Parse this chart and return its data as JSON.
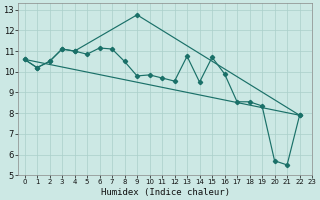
{
  "xlabel": "Humidex (Indice chaleur)",
  "bg_color": "#cce8e4",
  "grid_color": "#aacfca",
  "line_color": "#1a7068",
  "xlim": [
    -0.5,
    23
  ],
  "ylim": [
    5,
    13.3
  ],
  "yticks": [
    5,
    6,
    7,
    8,
    9,
    10,
    11,
    12,
    13
  ],
  "xticks": [
    0,
    1,
    2,
    3,
    4,
    5,
    6,
    7,
    8,
    9,
    10,
    11,
    12,
    13,
    14,
    15,
    16,
    17,
    18,
    19,
    20,
    21,
    22,
    23
  ],
  "series1_x": [
    0,
    1,
    2,
    3,
    4,
    5,
    6,
    7,
    8,
    9,
    10,
    11,
    12,
    13,
    14,
    15,
    16,
    17,
    18,
    19,
    20,
    21,
    22
  ],
  "series1_y": [
    10.6,
    10.2,
    10.5,
    11.1,
    11.0,
    10.85,
    11.15,
    11.1,
    10.5,
    9.8,
    9.85,
    9.7,
    9.55,
    10.75,
    9.5,
    10.7,
    9.9,
    8.55,
    8.55,
    8.35,
    5.7,
    5.5,
    7.9
  ],
  "series2_x": [
    0,
    1,
    2,
    3,
    4,
    9,
    22
  ],
  "series2_y": [
    10.6,
    10.2,
    10.5,
    11.1,
    11.0,
    12.75,
    7.9
  ],
  "series3_x": [
    0,
    22
  ],
  "series3_y": [
    10.6,
    7.9
  ],
  "xtick_fontsize": 5.0,
  "ytick_fontsize": 6.0,
  "xlabel_fontsize": 6.5
}
